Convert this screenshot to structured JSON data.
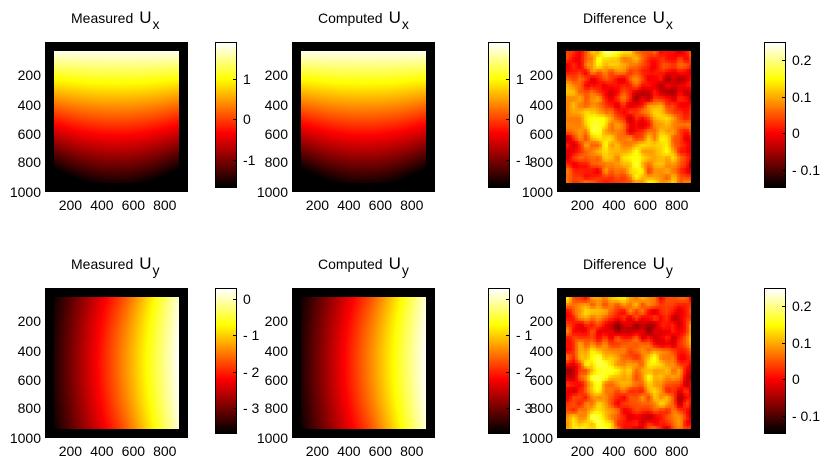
{
  "chart_data": [
    {
      "type": "heatmap",
      "title": "Measured",
      "symbol": "U",
      "subscript": "x",
      "yticks": [
        "200",
        "400",
        "600",
        "800",
        "1000"
      ],
      "xticks": [
        "200",
        "400",
        "600",
        "800"
      ],
      "colorbar": {
        "range": [
          -1.7,
          1.9
        ],
        "ticks": [
          {
            "v": 1,
            "label": "1"
          },
          {
            "v": 0,
            "label": "0"
          },
          {
            "v": -1,
            "label": "-1"
          }
        ]
      },
      "pattern": "ux"
    },
    {
      "type": "heatmap",
      "title": "Computed",
      "symbol": "U",
      "subscript": "x",
      "yticks": [
        "200",
        "400",
        "600",
        "800",
        "1000"
      ],
      "xticks": [
        "200",
        "400",
        "600",
        "800"
      ],
      "colorbar": {
        "range": [
          -1.7,
          1.9
        ],
        "ticks": [
          {
            "v": 1,
            "label": "1"
          },
          {
            "v": 0,
            "label": "0"
          },
          {
            "v": -1,
            "label": "- 1"
          }
        ]
      },
      "pattern": "ux"
    },
    {
      "type": "heatmap",
      "title": "Difference",
      "symbol": "U",
      "subscript": "x",
      "yticks": [
        "200",
        "400",
        "600",
        "800",
        "1000"
      ],
      "xticks": [
        "200",
        "400",
        "600",
        "800"
      ],
      "colorbar": {
        "range": [
          -0.15,
          0.25
        ],
        "ticks": [
          {
            "v": 0.2,
            "label": "0.2"
          },
          {
            "v": 0.1,
            "label": "0.1"
          },
          {
            "v": 0,
            "label": "0"
          },
          {
            "v": -0.1,
            "label": "- 0.1"
          }
        ]
      },
      "pattern": "noise"
    },
    {
      "type": "heatmap",
      "title": "Measured",
      "symbol": "U",
      "subscript": "y",
      "yticks": [
        "200",
        "400",
        "600",
        "800",
        "1000"
      ],
      "xticks": [
        "200",
        "400",
        "600",
        "800"
      ],
      "colorbar": {
        "range": [
          -3.7,
          0.3
        ],
        "ticks": [
          {
            "v": 0,
            "label": "0"
          },
          {
            "v": -1,
            "label": "- 1"
          },
          {
            "v": -2,
            "label": "- 2"
          },
          {
            "v": -3,
            "label": "- 3"
          }
        ]
      },
      "pattern": "uy"
    },
    {
      "type": "heatmap",
      "title": "Computed",
      "symbol": "U",
      "subscript": "y",
      "yticks": [
        "200",
        "400",
        "600",
        "800",
        "1000"
      ],
      "xticks": [
        "200",
        "400",
        "600",
        "800"
      ],
      "colorbar": {
        "range": [
          -3.7,
          0.3
        ],
        "ticks": [
          {
            "v": 0,
            "label": "0"
          },
          {
            "v": -1,
            "label": "- 1"
          },
          {
            "v": -2,
            "label": "- 2"
          },
          {
            "v": -3,
            "label": "- 3"
          }
        ]
      },
      "pattern": "uy"
    },
    {
      "type": "heatmap",
      "title": "Difference",
      "symbol": "U",
      "subscript": "y",
      "yticks": [
        "200",
        "400",
        "600",
        "800",
        "1000"
      ],
      "xticks": [
        "200",
        "400",
        "600",
        "800"
      ],
      "colorbar": {
        "range": [
          -0.15,
          0.25
        ],
        "ticks": [
          {
            "v": 0.2,
            "label": "0.2"
          },
          {
            "v": 0.1,
            "label": "0.1"
          },
          {
            "v": 0,
            "label": "0"
          },
          {
            "v": -0.1,
            "label": "- 0.1"
          }
        ]
      },
      "pattern": "noise2"
    }
  ],
  "colormap": "hot"
}
